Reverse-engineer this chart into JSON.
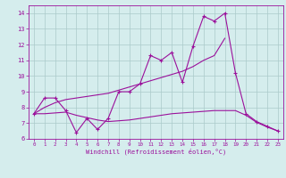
{
  "x": [
    0,
    1,
    2,
    3,
    4,
    5,
    6,
    7,
    8,
    9,
    10,
    11,
    12,
    13,
    14,
    15,
    16,
    17,
    18,
    19,
    20,
    21,
    22,
    23
  ],
  "main_line": [
    7.6,
    8.6,
    8.6,
    7.8,
    6.4,
    7.3,
    6.6,
    7.3,
    9.0,
    9.0,
    9.5,
    11.3,
    11.0,
    11.5,
    9.6,
    11.9,
    13.8,
    13.5,
    14.0,
    10.2,
    7.6,
    7.1,
    6.8,
    6.5
  ],
  "upper_trend": [
    7.6,
    8.0,
    8.3,
    8.5,
    8.6,
    8.7,
    8.8,
    8.9,
    9.1,
    9.3,
    9.5,
    9.7,
    9.9,
    10.1,
    10.3,
    10.6,
    11.0,
    11.3,
    12.4
  ],
  "lower_trend": [
    7.6,
    7.6,
    7.65,
    7.7,
    7.5,
    7.35,
    7.2,
    7.1,
    7.15,
    7.2,
    7.3,
    7.4,
    7.5,
    7.6,
    7.65,
    7.7,
    7.75,
    7.8,
    7.8,
    7.8,
    7.5,
    7.05,
    6.75,
    6.5
  ],
  "upper_trend_x": [
    0,
    1,
    2,
    3,
    4,
    5,
    6,
    7,
    8,
    9,
    10,
    11,
    12,
    13,
    14,
    15,
    16,
    17,
    18
  ],
  "color": "#9b109b",
  "bgcolor": "#d5eded",
  "grid_color": "#aacaca",
  "ylim": [
    6,
    14.5
  ],
  "xlim": [
    -0.5,
    23.5
  ],
  "yticks": [
    6,
    7,
    8,
    9,
    10,
    11,
    12,
    13,
    14
  ],
  "xticks": [
    0,
    1,
    2,
    3,
    4,
    5,
    6,
    7,
    8,
    9,
    10,
    11,
    12,
    13,
    14,
    15,
    16,
    17,
    18,
    19,
    20,
    21,
    22,
    23
  ],
  "xlabel": "Windchill (Refroidissement éolien,°C)"
}
